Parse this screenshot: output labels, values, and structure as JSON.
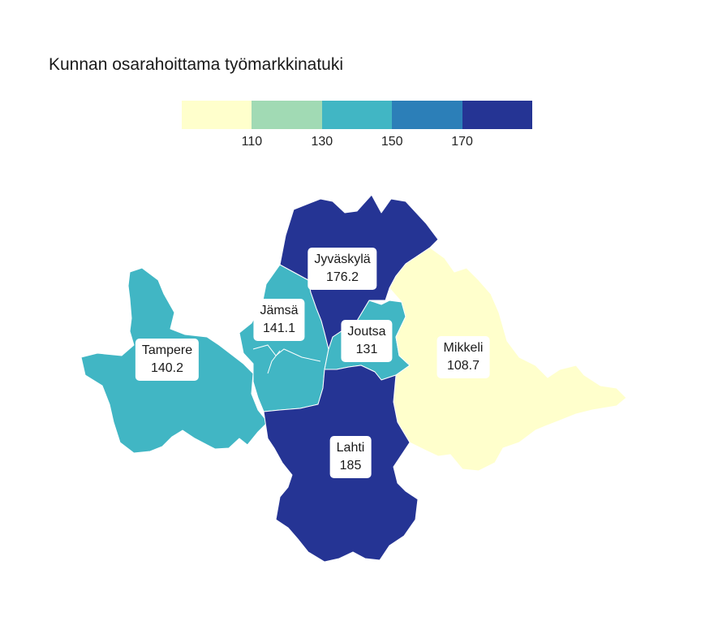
{
  "title": "Kunnan osarahoittama työmarkkinatuki",
  "legend": {
    "colors": [
      "#ffffcc",
      "#a1dab4",
      "#41b6c4",
      "#2c7fb8",
      "#253494"
    ],
    "ticks": [
      "110",
      "130",
      "150",
      "170"
    ]
  },
  "regions": [
    {
      "id": "tampere",
      "name": "Tampere",
      "value": "140.2",
      "color": "#41b6c4"
    },
    {
      "id": "jamsa",
      "name": "Jämsä",
      "value": "141.1",
      "color": "#41b6c4"
    },
    {
      "id": "jyvaskyla",
      "name": "Jyväskylä",
      "value": "176.2",
      "color": "#253494"
    },
    {
      "id": "joutsa",
      "name": "Joutsa",
      "value": "131",
      "color": "#41b6c4"
    },
    {
      "id": "mikkeli",
      "name": "Mikkeli",
      "value": "108.7",
      "color": "#ffffcc"
    },
    {
      "id": "lahti",
      "name": "Lahti",
      "value": "185",
      "color": "#253494"
    }
  ]
}
